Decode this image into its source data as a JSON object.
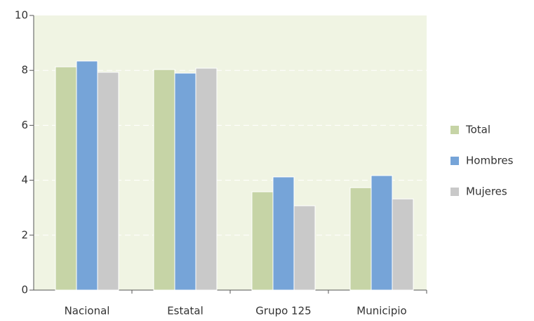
{
  "chart_data": {
    "type": "bar",
    "categories": [
      "Nacional",
      "Estatal",
      "Grupo 125",
      "Municipio"
    ],
    "series": [
      {
        "name": "Total",
        "color": "#c6d4a6",
        "values": [
          8.13,
          8.03,
          3.58,
          3.73
        ]
      },
      {
        "name": "Hombres",
        "color": "#76a4d8",
        "values": [
          8.34,
          7.9,
          4.12,
          4.17
        ]
      },
      {
        "name": "Mujeres",
        "color": "#c9c9c9",
        "values": [
          7.93,
          8.08,
          3.07,
          3.32
        ]
      }
    ],
    "ylim": [
      0,
      10
    ],
    "yticks": [
      0,
      2,
      4,
      6,
      8,
      10
    ],
    "grid": true,
    "legend": "right"
  }
}
